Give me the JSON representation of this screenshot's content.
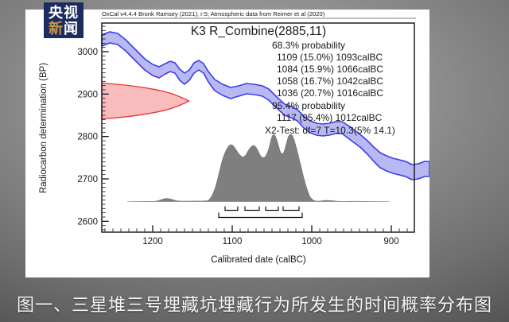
{
  "logo": {
    "l1a": "央",
    "l1b": "视",
    "l2a": "新",
    "l2b": "闻",
    "bg_color": "#1d2c5e",
    "accent_color": "#c6934b"
  },
  "caption": {
    "text": "图一、三星堆三号埋藏坑埋藏行为所发生的时间概率分布图"
  },
  "chart": {
    "attribution": "OxCal v4.4.4 Bronk Ramsey (2021); r:5; Atmospheric data from Reimer et al (2020)",
    "title": "K3 R_Combine(2885,11)",
    "stats": [
      "68.3% probability",
      "1109 (15.0%) 1093calBC",
      "1084 (15.9%) 1066calBC",
      "1058 (16.7%) 1042calBC",
      "1036 (20.7%) 1016calBC",
      "95.4% probability",
      "1117 (95.4%) 1012calBC",
      "X2-Test: df=7 T=10.3(5% 14.1)"
    ],
    "xlabel": "Calibrated date (calBC)",
    "ylabel": "Radiocarbon determination (BP)"
  },
  "chart_data": {
    "type": "area",
    "title": "K3 R_Combine(2885,11)",
    "xlabel": "Calibrated date (calBC)",
    "ylabel": "Radiocarbon determination (BP)",
    "grid": false,
    "legend": false,
    "x_axis": {
      "ticks": [
        1200,
        1100,
        1000,
        900
      ],
      "minor_step": 10,
      "range_calBC": [
        1264,
        871
      ],
      "direction": "older-dates-left"
    },
    "y_axis": {
      "ticks": [
        3000,
        2900,
        2800,
        2700,
        2600
      ],
      "minor_step": 10,
      "range_BP": [
        2574,
        3064
      ]
    },
    "series": [
      {
        "name": "calibration-curve-band",
        "stroke": "#3d3dec",
        "fill": "#b8b8f4",
        "description": "calibration curve ±1σ band descending from ~3010 BP at 1260 calBC to ~2660 BP at 880 calBC"
      },
      {
        "name": "radiocarbon-likelihood",
        "stroke": "#e53935",
        "fill": "#f8bcbc",
        "mean_BP": 2885,
        "sigma_BP": 11,
        "description": "R_Combine(2885,11) likelihood plotted against the BP axis"
      },
      {
        "name": "calibrated-posterior",
        "stroke": "#6e6e6e",
        "fill": "#7f7f7f",
        "peaks_calBC": [
          1102,
          1074,
          1049,
          1026
        ],
        "description": "calibrated-date probability density on the calendar axis"
      }
    ],
    "probability_68_3": {
      "label": "68.3% probability",
      "ranges": [
        [
          1109,
          15.0,
          1093
        ],
        [
          1084,
          15.9,
          1066
        ],
        [
          1058,
          16.7,
          1042
        ],
        [
          1036,
          20.7,
          1016
        ]
      ]
    },
    "probability_95_4": {
      "label": "95.4% probability",
      "ranges": [
        [
          1117,
          95.4,
          1012
        ]
      ]
    },
    "chi2_test": {
      "df": 7,
      "T": 10.3,
      "crit_5pct": 14.1
    }
  }
}
